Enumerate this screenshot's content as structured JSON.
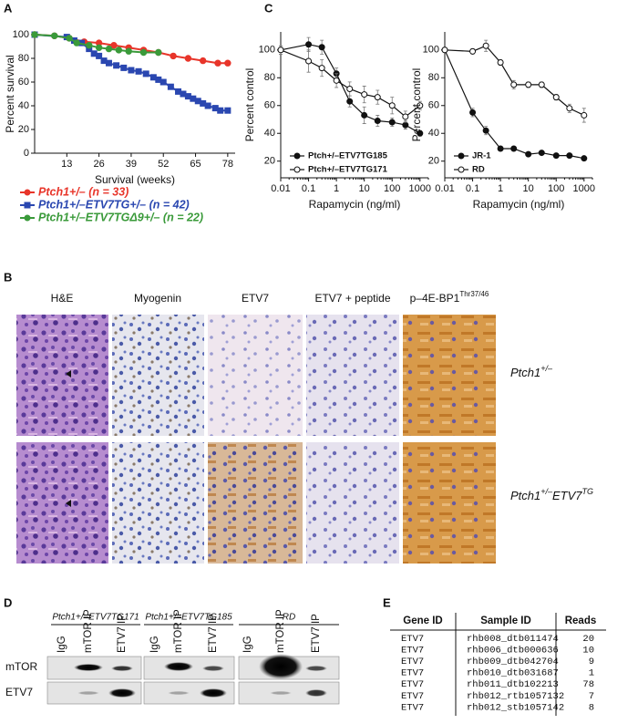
{
  "panel_labels": [
    "A",
    "B",
    "C",
    "D",
    "E"
  ],
  "chart_data": [
    {
      "type": "line",
      "xlabel": "Survival (weeks)",
      "ylabel": "Percent survival",
      "xlim": [
        0,
        81
      ],
      "xticks": [
        13,
        26,
        39,
        52,
        65,
        78
      ],
      "ylim": [
        0,
        100
      ],
      "yticks": [
        0,
        20,
        40,
        60,
        80,
        100
      ],
      "series": [
        {
          "name": "Ptch1+/– (n = 33)",
          "color": "#e8352a",
          "marker": "circle",
          "x": [
            0,
            8,
            14,
            20,
            26,
            32,
            38,
            44,
            50,
            56,
            62,
            68,
            74,
            78
          ],
          "values": [
            100,
            99,
            97,
            94,
            93,
            91,
            89,
            87,
            85,
            82,
            80,
            78,
            76,
            76
          ]
        },
        {
          "name": "Ptch1+/–ETV7TG+/– (n = 42)",
          "color": "#2a47b0",
          "marker": "square",
          "x": [
            0,
            13,
            16,
            19,
            22,
            24,
            26,
            28,
            30,
            33,
            36,
            39,
            42,
            45,
            48,
            50,
            52,
            55,
            58,
            60,
            62,
            64,
            66,
            68,
            70,
            73,
            75,
            78
          ],
          "values": [
            100,
            98,
            95,
            93,
            88,
            84,
            82,
            78,
            76,
            74,
            72,
            70,
            69,
            67,
            64,
            62,
            60,
            56,
            52,
            50,
            48,
            46,
            44,
            42,
            40,
            38,
            36,
            36
          ]
        },
        {
          "name": "Ptch1+/–ETV7TGΔ9+/– (n = 22)",
          "color": "#3a9a3a",
          "marker": "circle",
          "x": [
            0,
            8,
            14,
            17,
            22,
            26,
            30,
            34,
            38,
            44,
            50
          ],
          "values": [
            100,
            99,
            97,
            93,
            91,
            89,
            88,
            87,
            86,
            85,
            85
          ]
        }
      ]
    },
    {
      "type": "line",
      "log_x": true,
      "xlabel": "Rapamycin (ng/ml)",
      "ylabel": "Percent control",
      "xlim": [
        0.01,
        2000
      ],
      "xticks": [
        0.01,
        0.1,
        1,
        10,
        100,
        1000
      ],
      "ylim": [
        8,
        113
      ],
      "yticks": [
        20,
        40,
        60,
        80,
        100
      ],
      "x": [
        0.01,
        0.1,
        0.3,
        1,
        3,
        10,
        30,
        100,
        300,
        1000
      ],
      "series": [
        {
          "name": "Ptch+/–ETV7TG185",
          "color": "#111111",
          "marker": "circle",
          "filled": true,
          "values": [
            100,
            104,
            102,
            83,
            63,
            53,
            49,
            48,
            46,
            40
          ],
          "errors": [
            3,
            5,
            5,
            4,
            4,
            6,
            4,
            3,
            3,
            2
          ]
        },
        {
          "name": "Ptch+/–ETV7TG171",
          "color": "#111111",
          "marker": "circle",
          "filled": false,
          "values": [
            100,
            92,
            87,
            78,
            72,
            68,
            66,
            60,
            52,
            60
          ],
          "errors": [
            3,
            8,
            6,
            5,
            5,
            6,
            5,
            6,
            4,
            3
          ]
        }
      ]
    },
    {
      "type": "line",
      "log_x": true,
      "xlabel": "Rapamycin (ng/ml)",
      "ylabel": "Percent control",
      "xlim": [
        0.01,
        2000
      ],
      "xticks": [
        0.01,
        0.1,
        1,
        10,
        100,
        1000
      ],
      "ylim": [
        8,
        113
      ],
      "yticks": [
        20,
        40,
        60,
        80,
        100
      ],
      "x": [
        0.01,
        0.1,
        0.3,
        1,
        3,
        10,
        30,
        100,
        300,
        1000
      ],
      "series": [
        {
          "name": "JR-1",
          "color": "#111111",
          "marker": "circle",
          "filled": true,
          "values": [
            100,
            55,
            42,
            29,
            29,
            25,
            26,
            24,
            24,
            22
          ],
          "errors": [
            1,
            3,
            3,
            1,
            1,
            1,
            1,
            1,
            1,
            1
          ]
        },
        {
          "name": "RD",
          "color": "#111111",
          "marker": "circle",
          "filled": false,
          "values": [
            100,
            99,
            103,
            91,
            75,
            75,
            75,
            66,
            58,
            53
          ],
          "errors": [
            1,
            2,
            4,
            2,
            3,
            2,
            2,
            2,
            3,
            5
          ]
        }
      ]
    }
  ],
  "histology": {
    "columns": [
      {
        "label": "H&E"
      },
      {
        "label": "Myogenin"
      },
      {
        "label": "ETV7"
      },
      {
        "label": "ETV7 + peptide"
      },
      {
        "label": "p–4E-BP1",
        "sup": "Thr37/46"
      }
    ],
    "rows": [
      {
        "label": "Ptch1",
        "sup": "+/–"
      },
      {
        "label": "Ptch1",
        "sup": "+/–",
        "label2": "ETV7",
        "sup2": "TG"
      }
    ]
  },
  "western": {
    "groups": [
      "Ptch1+/–ETV7TG171",
      "Ptch1+/–ETV7TG185",
      "RD"
    ],
    "lanes": [
      "IgG",
      "mTOR IP",
      "ETV7 IP"
    ],
    "proteins": [
      "mTOR",
      "ETV7"
    ]
  },
  "table": {
    "header": [
      "Gene ID",
      "Sample ID",
      "Reads"
    ],
    "rows": [
      [
        "ETV7",
        "rhb008_dtb011474",
        "20"
      ],
      [
        "ETV7",
        "rhb006_dtb000636",
        "10"
      ],
      [
        "ETV7",
        "rhb009_dtb042704",
        "9"
      ],
      [
        "ETV7",
        "rhb010_dtb031687",
        "1"
      ],
      [
        "ETV7",
        "rhb011_dtb102213",
        "78"
      ],
      [
        "ETV7",
        "rhb012_rtb1057132",
        "7"
      ],
      [
        "ETV7",
        "rhb012_stb1057142",
        "8"
      ]
    ]
  }
}
